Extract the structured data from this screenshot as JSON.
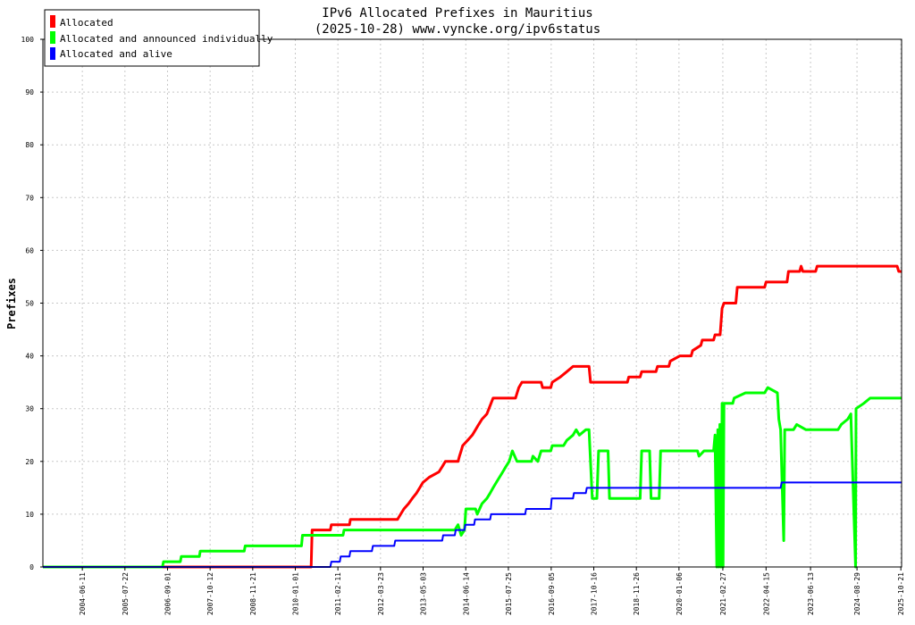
{
  "chart_data": {
    "type": "line",
    "title": "IPv6 Allocated Prefixes in Mauritius",
    "subtitle": "(2025-10-28) www.vyncke.org/ipv6status",
    "ylabel": "Prefixes",
    "xlabel": "",
    "ylim": [
      0,
      100
    ],
    "yticks": [
      0,
      10,
      20,
      30,
      40,
      50,
      60,
      70,
      80,
      90,
      100
    ],
    "xrange": [
      "2003-06-01",
      "2025-10-28"
    ],
    "xticks": [
      "2004-06-11",
      "2005-07-22",
      "2006-09-01",
      "2007-10-12",
      "2008-11-21",
      "2010-01-01",
      "2011-02-11",
      "2012-03-23",
      "2013-05-03",
      "2014-06-14",
      "2015-07-25",
      "2016-09-05",
      "2017-10-16",
      "2018-11-26",
      "2020-01-06",
      "2021-02-27",
      "2022-04-15",
      "2023-06-13",
      "2024-08-29",
      "2025-10-21"
    ],
    "grid": true,
    "legend_position": "top-left",
    "series": [
      {
        "name": "Allocated",
        "color": "#ff0000",
        "points": [
          [
            "2003-06-01",
            0
          ],
          [
            "2010-06-01",
            0
          ],
          [
            "2010-06-10",
            7
          ],
          [
            "2010-12-01",
            7
          ],
          [
            "2010-12-10",
            8
          ],
          [
            "2011-06-01",
            8
          ],
          [
            "2011-06-10",
            9
          ],
          [
            "2012-09-01",
            9
          ],
          [
            "2012-10-01",
            10
          ],
          [
            "2012-11-01",
            11
          ],
          [
            "2012-12-15",
            12
          ],
          [
            "2013-01-20",
            13
          ],
          [
            "2013-03-01",
            14
          ],
          [
            "2013-04-01",
            15
          ],
          [
            "2013-05-01",
            16
          ],
          [
            "2013-07-01",
            17
          ],
          [
            "2013-10-01",
            18
          ],
          [
            "2013-11-01",
            19
          ],
          [
            "2013-12-01",
            20
          ],
          [
            "2014-04-01",
            20
          ],
          [
            "2014-04-15",
            21
          ],
          [
            "2014-05-01",
            22
          ],
          [
            "2014-05-15",
            23
          ],
          [
            "2014-07-01",
            24
          ],
          [
            "2014-08-15",
            25
          ],
          [
            "2014-09-15",
            26
          ],
          [
            "2014-10-15",
            27
          ],
          [
            "2014-11-15",
            28
          ],
          [
            "2015-01-01",
            29
          ],
          [
            "2015-03-01",
            32
          ],
          [
            "2015-10-01",
            32
          ],
          [
            "2015-11-01",
            34
          ],
          [
            "2015-12-01",
            35
          ],
          [
            "2016-06-01",
            35
          ],
          [
            "2016-06-15",
            34
          ],
          [
            "2016-09-01",
            34
          ],
          [
            "2016-09-15",
            35
          ],
          [
            "2016-12-01",
            36
          ],
          [
            "2017-02-01",
            37
          ],
          [
            "2017-04-01",
            38
          ],
          [
            "2017-09-01",
            38
          ],
          [
            "2017-09-15",
            35
          ],
          [
            "2018-09-01",
            35
          ],
          [
            "2018-09-15",
            36
          ],
          [
            "2019-01-01",
            36
          ],
          [
            "2019-01-15",
            37
          ],
          [
            "2019-06-01",
            37
          ],
          [
            "2019-06-15",
            38
          ],
          [
            "2019-10-01",
            38
          ],
          [
            "2019-10-15",
            39
          ],
          [
            "2020-01-15",
            40
          ],
          [
            "2020-05-01",
            40
          ],
          [
            "2020-05-15",
            41
          ],
          [
            "2020-08-01",
            42
          ],
          [
            "2020-08-15",
            43
          ],
          [
            "2020-12-01",
            43
          ],
          [
            "2020-12-15",
            44
          ],
          [
            "2021-02-01",
            44
          ],
          [
            "2021-02-20",
            49
          ],
          [
            "2021-03-10",
            50
          ],
          [
            "2021-07-01",
            50
          ],
          [
            "2021-07-15",
            53
          ],
          [
            "2022-04-01",
            53
          ],
          [
            "2022-04-15",
            54
          ],
          [
            "2022-11-01",
            54
          ],
          [
            "2022-11-15",
            56
          ],
          [
            "2023-03-01",
            56
          ],
          [
            "2023-03-15",
            57
          ],
          [
            "2023-04-01",
            56
          ],
          [
            "2023-08-01",
            56
          ],
          [
            "2023-08-15",
            57
          ],
          [
            "2025-09-15",
            57
          ],
          [
            "2025-10-01",
            56
          ],
          [
            "2025-10-28",
            56
          ]
        ]
      },
      {
        "name": "Allocated and announced individually",
        "color": "#00ff00",
        "points": [
          [
            "2003-06-01",
            0
          ],
          [
            "2006-07-15",
            0
          ],
          [
            "2006-07-25",
            1
          ],
          [
            "2007-01-01",
            1
          ],
          [
            "2007-01-10",
            2
          ],
          [
            "2007-07-01",
            2
          ],
          [
            "2007-07-10",
            3
          ],
          [
            "2008-09-01",
            3
          ],
          [
            "2008-09-10",
            4
          ],
          [
            "2010-03-01",
            4
          ],
          [
            "2010-03-10",
            6
          ],
          [
            "2011-04-01",
            6
          ],
          [
            "2011-04-10",
            7
          ],
          [
            "2014-03-01",
            7
          ],
          [
            "2014-04-01",
            8
          ],
          [
            "2014-05-01",
            6
          ],
          [
            "2014-06-01",
            7
          ],
          [
            "2014-06-15",
            11
          ],
          [
            "2014-09-15",
            11
          ],
          [
            "2014-10-01",
            10
          ],
          [
            "2014-11-15",
            12
          ],
          [
            "2015-01-01",
            13
          ],
          [
            "2015-02-01",
            14
          ],
          [
            "2015-03-01",
            15
          ],
          [
            "2015-04-01",
            16
          ],
          [
            "2015-05-01",
            17
          ],
          [
            "2015-06-01",
            18
          ],
          [
            "2015-07-01",
            19
          ],
          [
            "2015-08-01",
            20
          ],
          [
            "2015-09-01",
            22
          ],
          [
            "2015-10-15",
            20
          ],
          [
            "2016-03-01",
            20
          ],
          [
            "2016-03-15",
            21
          ],
          [
            "2016-05-01",
            20
          ],
          [
            "2016-06-01",
            22
          ],
          [
            "2016-09-01",
            22
          ],
          [
            "2016-09-15",
            23
          ],
          [
            "2017-01-01",
            23
          ],
          [
            "2017-02-01",
            24
          ],
          [
            "2017-04-01",
            25
          ],
          [
            "2017-05-01",
            26
          ],
          [
            "2017-06-01",
            25
          ],
          [
            "2017-08-01",
            26
          ],
          [
            "2017-09-01",
            26
          ],
          [
            "2017-10-01",
            13
          ],
          [
            "2017-11-15",
            13
          ],
          [
            "2017-12-01",
            22
          ],
          [
            "2018-03-01",
            22
          ],
          [
            "2018-03-15",
            13
          ],
          [
            "2019-01-01",
            13
          ],
          [
            "2019-01-15",
            22
          ],
          [
            "2019-04-01",
            22
          ],
          [
            "2019-04-15",
            13
          ],
          [
            "2019-07-01",
            13
          ],
          [
            "2019-07-15",
            22
          ],
          [
            "2020-07-01",
            22
          ],
          [
            "2020-07-15",
            21
          ],
          [
            "2020-09-01",
            22
          ],
          [
            "2020-12-01",
            22
          ],
          [
            "2020-12-15",
            25
          ],
          [
            "2021-01-01",
            0
          ],
          [
            "2021-01-10",
            26
          ],
          [
            "2021-01-20",
            0
          ],
          [
            "2021-01-30",
            27
          ],
          [
            "2021-02-10",
            0
          ],
          [
            "2021-02-20",
            31
          ],
          [
            "2021-03-01",
            0
          ],
          [
            "2021-03-10",
            31
          ],
          [
            "2021-06-01",
            31
          ],
          [
            "2021-06-15",
            32
          ],
          [
            "2021-10-01",
            33
          ],
          [
            "2022-04-01",
            33
          ],
          [
            "2022-05-01",
            34
          ],
          [
            "2022-08-01",
            33
          ],
          [
            "2022-08-15",
            28
          ],
          [
            "2022-09-01",
            26
          ],
          [
            "2022-10-01",
            5
          ],
          [
            "2022-10-10",
            26
          ],
          [
            "2023-01-01",
            26
          ],
          [
            "2023-02-01",
            27
          ],
          [
            "2023-05-01",
            26
          ],
          [
            "2024-03-01",
            26
          ],
          [
            "2024-04-01",
            27
          ],
          [
            "2024-06-01",
            28
          ],
          [
            "2024-07-01",
            29
          ],
          [
            "2024-08-15",
            0
          ],
          [
            "2024-08-20",
            30
          ],
          [
            "2024-11-01",
            31
          ],
          [
            "2025-01-01",
            32
          ],
          [
            "2025-10-28",
            32
          ]
        ]
      },
      {
        "name": "Allocated and alive",
        "color": "#0000ff",
        "points": [
          [
            "2003-06-01",
            0
          ],
          [
            "2010-12-01",
            0
          ],
          [
            "2010-12-10",
            1
          ],
          [
            "2011-03-01",
            1
          ],
          [
            "2011-03-10",
            2
          ],
          [
            "2011-06-01",
            2
          ],
          [
            "2011-06-10",
            3
          ],
          [
            "2012-01-01",
            3
          ],
          [
            "2012-01-10",
            4
          ],
          [
            "2012-08-01",
            4
          ],
          [
            "2012-08-10",
            5
          ],
          [
            "2013-11-01",
            5
          ],
          [
            "2013-11-10",
            6
          ],
          [
            "2014-03-01",
            6
          ],
          [
            "2014-03-10",
            7
          ],
          [
            "2014-06-01",
            7
          ],
          [
            "2014-06-10",
            8
          ],
          [
            "2014-09-01",
            8
          ],
          [
            "2014-09-10",
            9
          ],
          [
            "2015-02-01",
            9
          ],
          [
            "2015-02-10",
            10
          ],
          [
            "2016-01-01",
            10
          ],
          [
            "2016-01-10",
            11
          ],
          [
            "2016-09-01",
            11
          ],
          [
            "2016-09-10",
            13
          ],
          [
            "2017-04-01",
            13
          ],
          [
            "2017-04-10",
            14
          ],
          [
            "2017-08-01",
            14
          ],
          [
            "2017-08-10",
            15
          ],
          [
            "2022-09-01",
            15
          ],
          [
            "2022-09-10",
            16
          ],
          [
            "2025-10-28",
            16
          ]
        ]
      }
    ]
  }
}
